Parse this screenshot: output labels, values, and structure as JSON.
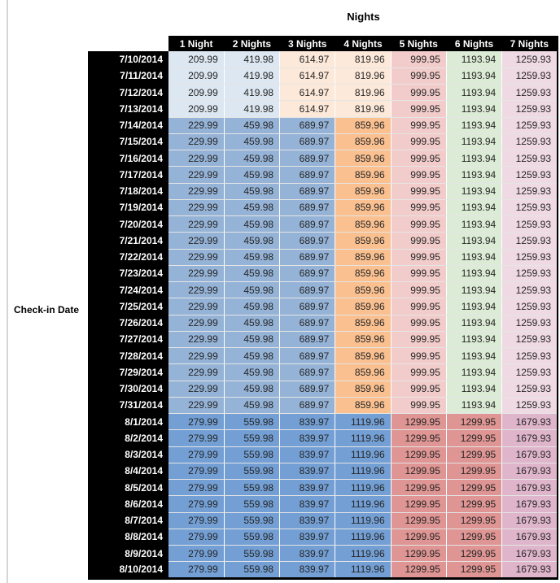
{
  "title": "Nights",
  "row_axis_label": "Check-in Date",
  "palette": {
    "light_blue": "#DCE7F1",
    "med_blue": "#95B3D7",
    "deep_blue": "#739FD4",
    "light_peach": "#FDE9D9",
    "orange": "#FAC090",
    "light_red": "#F2CCCA",
    "med_red": "#DE9593",
    "light_green": "#DCEBD5",
    "light_pink": "#EFD9E2",
    "med_pink": "#DFB5CB",
    "header_bg": "#000000",
    "header_text": "#ffffff",
    "cell_text": "#262626"
  },
  "tier_colors": {
    "low": [
      "light_blue",
      "light_blue",
      "light_peach",
      "light_peach",
      "light_red",
      "light_green",
      "light_pink"
    ],
    "mid": [
      "med_blue",
      "med_blue",
      "med_blue",
      "orange",
      "light_red",
      "light_green",
      "light_pink"
    ],
    "peak": [
      "deep_blue",
      "deep_blue",
      "deep_blue",
      "deep_blue",
      "med_red",
      "med_red",
      "med_pink"
    ]
  },
  "chart_data": {
    "type": "table",
    "title": "Nights",
    "row_header": "Check-in Date",
    "columns": [
      "1 Night",
      "2 Nights",
      "3 Nights",
      "4 Nights",
      "5 Nights",
      "6 Nights",
      "7 Nights"
    ],
    "rows": [
      {
        "date": "7/10/2014",
        "tier": "low",
        "values": [
          209.99,
          419.98,
          614.97,
          819.96,
          999.95,
          1193.94,
          1259.93
        ]
      },
      {
        "date": "7/11/2014",
        "tier": "low",
        "values": [
          209.99,
          419.98,
          614.97,
          819.96,
          999.95,
          1193.94,
          1259.93
        ]
      },
      {
        "date": "7/12/2014",
        "tier": "low",
        "values": [
          209.99,
          419.98,
          614.97,
          819.96,
          999.95,
          1193.94,
          1259.93
        ]
      },
      {
        "date": "7/13/2014",
        "tier": "low",
        "values": [
          209.99,
          419.98,
          614.97,
          819.96,
          999.95,
          1193.94,
          1259.93
        ]
      },
      {
        "date": "7/14/2014",
        "tier": "mid",
        "values": [
          229.99,
          459.98,
          689.97,
          859.96,
          999.95,
          1193.94,
          1259.93
        ]
      },
      {
        "date": "7/15/2014",
        "tier": "mid",
        "values": [
          229.99,
          459.98,
          689.97,
          859.96,
          999.95,
          1193.94,
          1259.93
        ]
      },
      {
        "date": "7/16/2014",
        "tier": "mid",
        "values": [
          229.99,
          459.98,
          689.97,
          859.96,
          999.95,
          1193.94,
          1259.93
        ]
      },
      {
        "date": "7/17/2014",
        "tier": "mid",
        "values": [
          229.99,
          459.98,
          689.97,
          859.96,
          999.95,
          1193.94,
          1259.93
        ]
      },
      {
        "date": "7/18/2014",
        "tier": "mid",
        "values": [
          229.99,
          459.98,
          689.97,
          859.96,
          999.95,
          1193.94,
          1259.93
        ]
      },
      {
        "date": "7/19/2014",
        "tier": "mid",
        "values": [
          229.99,
          459.98,
          689.97,
          859.96,
          999.95,
          1193.94,
          1259.93
        ]
      },
      {
        "date": "7/20/2014",
        "tier": "mid",
        "values": [
          229.99,
          459.98,
          689.97,
          859.96,
          999.95,
          1193.94,
          1259.93
        ]
      },
      {
        "date": "7/21/2014",
        "tier": "mid",
        "values": [
          229.99,
          459.98,
          689.97,
          859.96,
          999.95,
          1193.94,
          1259.93
        ]
      },
      {
        "date": "7/22/2014",
        "tier": "mid",
        "values": [
          229.99,
          459.98,
          689.97,
          859.96,
          999.95,
          1193.94,
          1259.93
        ]
      },
      {
        "date": "7/23/2014",
        "tier": "mid",
        "values": [
          229.99,
          459.98,
          689.97,
          859.96,
          999.95,
          1193.94,
          1259.93
        ]
      },
      {
        "date": "7/24/2014",
        "tier": "mid",
        "values": [
          229.99,
          459.98,
          689.97,
          859.96,
          999.95,
          1193.94,
          1259.93
        ]
      },
      {
        "date": "7/25/2014",
        "tier": "mid",
        "values": [
          229.99,
          459.98,
          689.97,
          859.96,
          999.95,
          1193.94,
          1259.93
        ]
      },
      {
        "date": "7/26/2014",
        "tier": "mid",
        "values": [
          229.99,
          459.98,
          689.97,
          859.96,
          999.95,
          1193.94,
          1259.93
        ]
      },
      {
        "date": "7/27/2014",
        "tier": "mid",
        "values": [
          229.99,
          459.98,
          689.97,
          859.96,
          999.95,
          1193.94,
          1259.93
        ]
      },
      {
        "date": "7/28/2014",
        "tier": "mid",
        "values": [
          229.99,
          459.98,
          689.97,
          859.96,
          999.95,
          1193.94,
          1259.93
        ]
      },
      {
        "date": "7/29/2014",
        "tier": "mid",
        "values": [
          229.99,
          459.98,
          689.97,
          859.96,
          999.95,
          1193.94,
          1259.93
        ]
      },
      {
        "date": "7/30/2014",
        "tier": "mid",
        "values": [
          229.99,
          459.98,
          689.97,
          859.96,
          999.95,
          1193.94,
          1259.93
        ]
      },
      {
        "date": "7/31/2014",
        "tier": "mid",
        "values": [
          229.99,
          459.98,
          689.97,
          859.96,
          999.95,
          1193.94,
          1259.93
        ]
      },
      {
        "date": "8/1/2014",
        "tier": "peak",
        "values": [
          279.99,
          559.98,
          839.97,
          1119.96,
          1299.95,
          1299.95,
          1679.93
        ]
      },
      {
        "date": "8/2/2014",
        "tier": "peak",
        "values": [
          279.99,
          559.98,
          839.97,
          1119.96,
          1299.95,
          1299.95,
          1679.93
        ]
      },
      {
        "date": "8/3/2014",
        "tier": "peak",
        "values": [
          279.99,
          559.98,
          839.97,
          1119.96,
          1299.95,
          1299.95,
          1679.93
        ]
      },
      {
        "date": "8/4/2014",
        "tier": "peak",
        "values": [
          279.99,
          559.98,
          839.97,
          1119.96,
          1299.95,
          1299.95,
          1679.93
        ]
      },
      {
        "date": "8/5/2014",
        "tier": "peak",
        "values": [
          279.99,
          559.98,
          839.97,
          1119.96,
          1299.95,
          1299.95,
          1679.93
        ]
      },
      {
        "date": "8/6/2014",
        "tier": "peak",
        "values": [
          279.99,
          559.98,
          839.97,
          1119.96,
          1299.95,
          1299.95,
          1679.93
        ]
      },
      {
        "date": "8/7/2014",
        "tier": "peak",
        "values": [
          279.99,
          559.98,
          839.97,
          1119.96,
          1299.95,
          1299.95,
          1679.93
        ]
      },
      {
        "date": "8/8/2014",
        "tier": "peak",
        "values": [
          279.99,
          559.98,
          839.97,
          1119.96,
          1299.95,
          1299.95,
          1679.93
        ]
      },
      {
        "date": "8/9/2014",
        "tier": "peak",
        "values": [
          279.99,
          559.98,
          839.97,
          1119.96,
          1299.95,
          1299.95,
          1679.93
        ]
      },
      {
        "date": "8/10/2014",
        "tier": "peak",
        "values": [
          279.99,
          559.98,
          839.97,
          1119.96,
          1299.95,
          1299.95,
          1679.93
        ]
      }
    ]
  }
}
